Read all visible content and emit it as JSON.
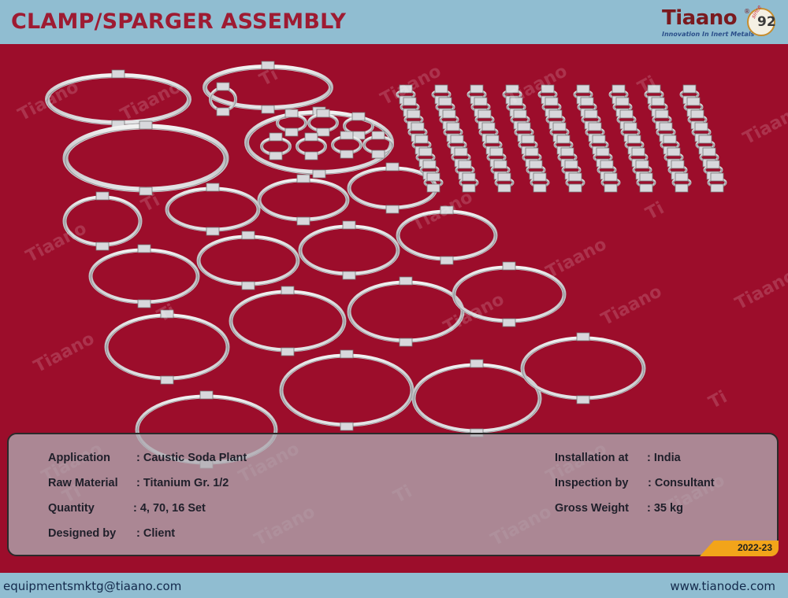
{
  "header": {
    "title": "CLAMP/SPARGER ASSEMBLY",
    "logo": {
      "word": "Tiaano",
      "registered": "®",
      "tagline": "Innovation In Inert Metals",
      "since": "since",
      "year": "92"
    }
  },
  "watermark": {
    "text": "Tiaano",
    "short": "Ti"
  },
  "info": {
    "left": [
      {
        "label": "Application",
        "value": ": Caustic Soda Plant"
      },
      {
        "label": "Raw Material",
        "value": ": Titanium Gr. 1/2"
      },
      {
        "label": "Quantity",
        "value": ": 4, 70, 16 Set"
      },
      {
        "label": "Designed by",
        "value": ": Client"
      }
    ],
    "right": [
      {
        "label": "Installation at",
        "value": ": India"
      },
      {
        "label": "Inspection by",
        "value": ": Consultant"
      },
      {
        "label": "Gross Weight",
        "value": ": 35 kg"
      }
    ],
    "year_badge": "2022-23"
  },
  "footer": {
    "email": "equipmentsmktg@tiaano.com",
    "website": "www.tianode.com"
  },
  "colors": {
    "background": "#9c0d2b",
    "title": "#9e1b32",
    "bar": "#90bdd1",
    "badge": "#f2a41a"
  }
}
